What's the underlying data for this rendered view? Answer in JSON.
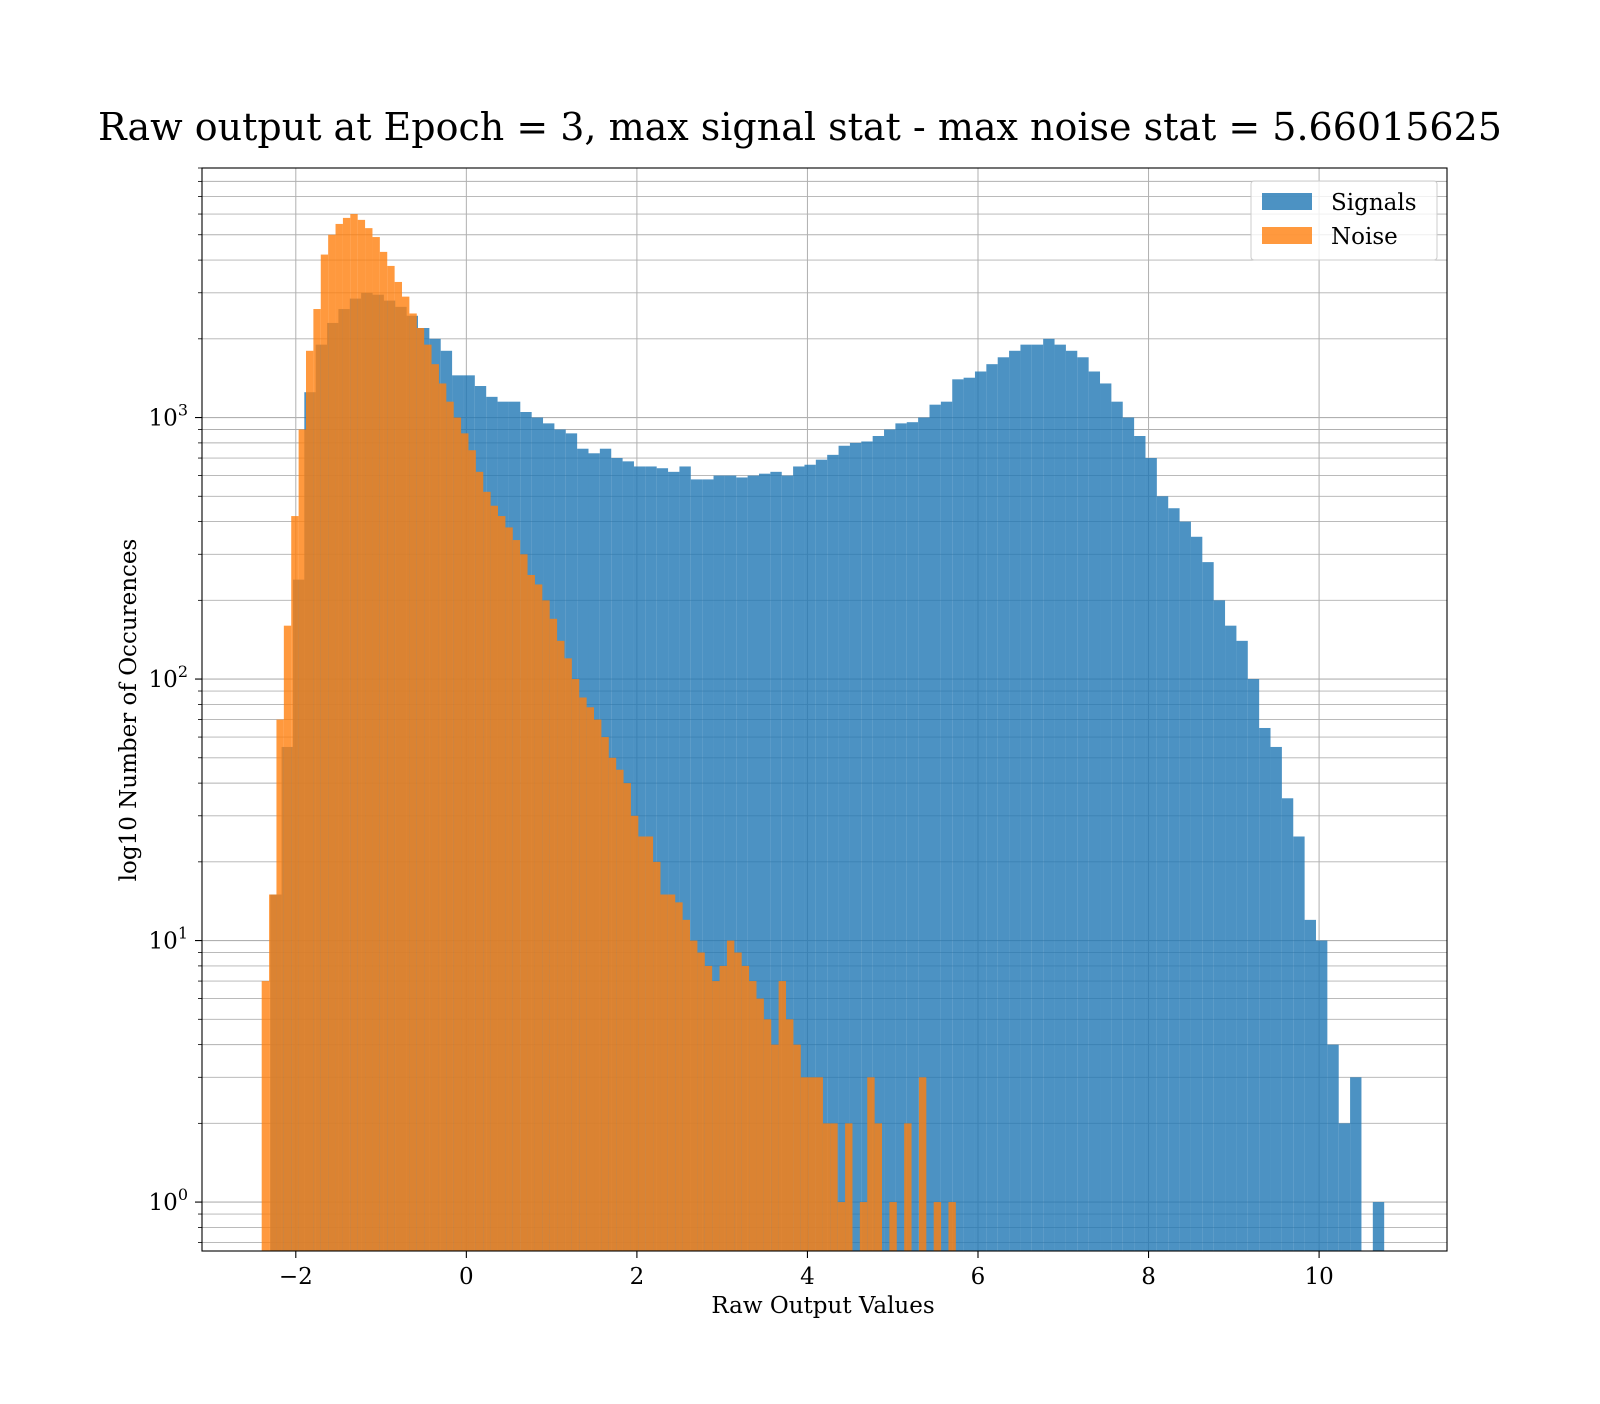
{
  "chart_data": {
    "type": "bar",
    "title": "Raw output at Epoch = 3, max signal stat - max noise stat = 5.66015625",
    "xlabel": "Raw Output Values",
    "ylabel": "log10 Number of Occurences",
    "x_scale": "linear",
    "y_scale": "log",
    "xlim": [
      -3.1,
      11.5
    ],
    "ylim": [
      0.65,
      9000
    ],
    "x_ticks": [
      -2,
      0,
      2,
      4,
      6,
      8,
      10
    ],
    "x_tick_labels": [
      "−2",
      "0",
      "2",
      "4",
      "6",
      "8",
      "10"
    ],
    "y_ticks": [
      1,
      10,
      100,
      1000
    ],
    "y_tick_labels": [
      {
        "base": "10",
        "exp": "0"
      },
      {
        "base": "10",
        "exp": "1"
      },
      {
        "base": "10",
        "exp": "2"
      },
      {
        "base": "10",
        "exp": "3"
      }
    ],
    "grid": true,
    "legend_position": "upper right",
    "series": [
      {
        "name": "Signals",
        "color": "#1f77b4",
        "opacity": 0.8,
        "bin_start": -2.3,
        "bin_width": 0.1333,
        "values": [
          15,
          55,
          240,
          1250,
          1900,
          2300,
          2600,
          2850,
          3000,
          2950,
          2800,
          2650,
          2450,
          2200,
          2000,
          1800,
          1450,
          1450,
          1320,
          1200,
          1150,
          1150,
          1050,
          1000,
          950,
          900,
          870,
          760,
          730,
          760,
          700,
          680,
          650,
          650,
          640,
          620,
          650,
          580,
          580,
          600,
          600,
          590,
          600,
          610,
          620,
          600,
          650,
          660,
          690,
          720,
          780,
          800,
          810,
          850,
          900,
          950,
          960,
          1000,
          1120,
          1150,
          1400,
          1420,
          1500,
          1600,
          1700,
          1800,
          1900,
          1900,
          2000,
          1900,
          1800,
          1700,
          1500,
          1350,
          1150,
          1000,
          850,
          700,
          500,
          450,
          400,
          350,
          280,
          200,
          160,
          140,
          100,
          65,
          55,
          35,
          25,
          12,
          10,
          4,
          2,
          3,
          0,
          1
        ]
      },
      {
        "name": "Noise",
        "color": "#ff7f0e",
        "opacity": 0.8,
        "bin_start": -2.4,
        "bin_width": 0.0866,
        "values": [
          7,
          15,
          70,
          160,
          420,
          900,
          1800,
          2600,
          4200,
          5000,
          5500,
          5800,
          6000,
          5700,
          5300,
          4900,
          4300,
          3800,
          3300,
          2900,
          2500,
          2200,
          1900,
          1600,
          1350,
          1150,
          1000,
          870,
          750,
          620,
          520,
          460,
          420,
          380,
          340,
          300,
          250,
          230,
          200,
          170,
          140,
          120,
          100,
          85,
          78,
          70,
          60,
          50,
          45,
          40,
          30,
          25,
          25,
          20,
          15,
          15,
          14,
          12,
          10,
          9,
          8,
          7,
          8,
          10,
          9,
          8,
          7,
          6,
          5,
          4,
          7,
          5,
          4,
          3,
          3,
          3,
          2,
          2,
          1,
          2,
          0,
          1,
          3,
          2,
          0,
          1,
          0,
          2,
          0,
          3,
          0,
          1,
          0,
          1
        ]
      }
    ]
  }
}
